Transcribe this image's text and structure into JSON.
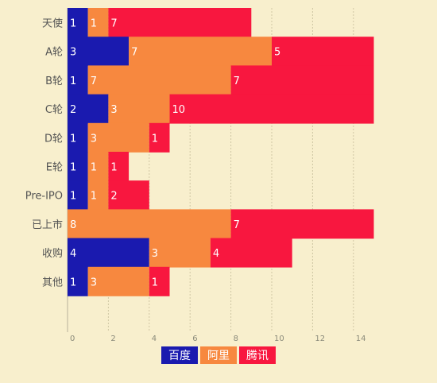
{
  "chart_data": {
    "type": "bar",
    "orientation": "horizontal",
    "stacked": true,
    "categories": [
      "天使",
      "A轮",
      "B轮",
      "C轮",
      "D轮",
      "E轮",
      "Pre-IPO",
      "已上市",
      "收购",
      "其他"
    ],
    "series": [
      {
        "name": "百度",
        "color": "#1a1aaf",
        "values": [
          1,
          3,
          1,
          2,
          1,
          1,
          1,
          0,
          4,
          1
        ]
      },
      {
        "name": "阿里",
        "color": "#f7883f",
        "values": [
          1,
          7,
          7,
          3,
          3,
          1,
          1,
          8,
          3,
          3
        ]
      },
      {
        "name": "腾讯",
        "color": "#f8173f",
        "values": [
          7,
          5,
          7,
          10,
          1,
          1,
          2,
          7,
          4,
          1
        ]
      }
    ],
    "xticks": [
      0,
      2,
      4,
      6,
      8,
      10,
      12,
      14
    ],
    "xlim": [
      0,
      15
    ],
    "grid": true,
    "legend_position": "bottom"
  }
}
